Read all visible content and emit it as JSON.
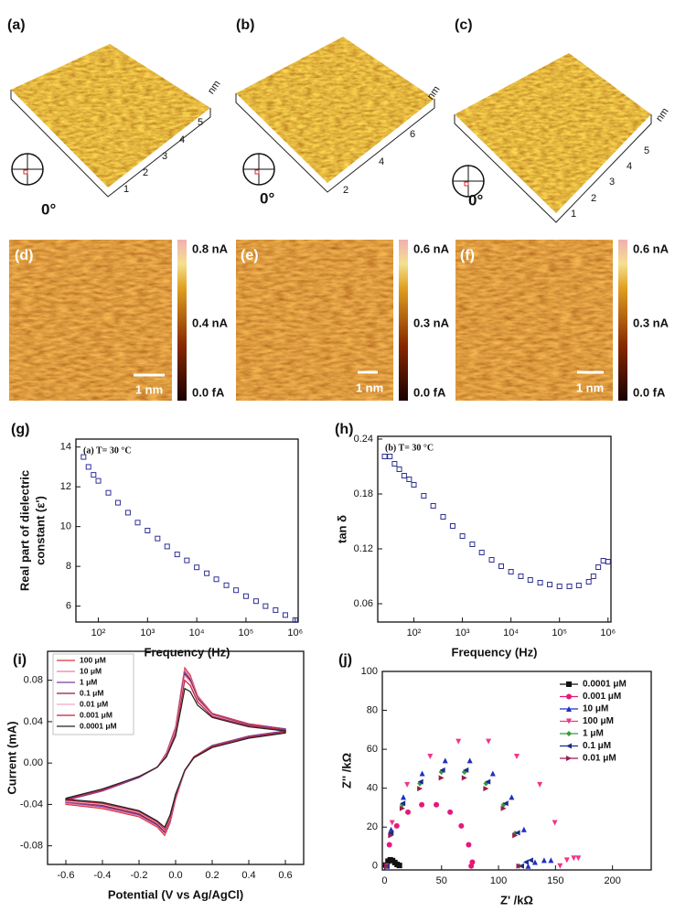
{
  "afm": [
    {
      "label": "(a)",
      "angle": "0°",
      "unit": "nm",
      "ticks": [
        "1",
        "2",
        "3",
        "4",
        "5"
      ]
    },
    {
      "label": "(b)",
      "angle": "0°",
      "unit": "nm",
      "ticks": [
        "2",
        "4",
        "6"
      ]
    },
    {
      "label": "(c)",
      "angle": "0°",
      "unit": "nm",
      "ticks": [
        "1",
        "2",
        "3",
        "4",
        "5"
      ]
    }
  ],
  "current_maps": [
    {
      "label": "(d)",
      "scale": "1 nm",
      "colorbar": [
        "0.8 nA",
        "0.4 nA",
        "0.0 fA"
      ]
    },
    {
      "label": "(e)",
      "scale": "1 nm",
      "colorbar": [
        "0.6 nA",
        "0.3 nA",
        "0.0 fA"
      ]
    },
    {
      "label": "(f)",
      "scale": "1 nm",
      "colorbar": [
        "0.6 nA",
        "0.3 nA",
        "0.0 fA"
      ]
    }
  ],
  "chart_data": [
    {
      "type": "scatter",
      "label": "(g)",
      "annotation": "(a) T= 30 °C",
      "xlabel": "Frequency (Hz)",
      "ylabel": [
        "Real part of dielectric",
        "constant (ε')"
      ],
      "xscale": "log",
      "xlim": [
        35,
        1150000
      ],
      "ylim": [
        5.2,
        14.4
      ],
      "xticks": [
        {
          "value": 100,
          "label": "10²"
        },
        {
          "value": 1000,
          "label": "10³"
        },
        {
          "value": 10000,
          "label": "10⁴"
        },
        {
          "value": 100000,
          "label": "10⁵"
        },
        {
          "value": 1000000,
          "label": "10⁶"
        }
      ],
      "yticks": [
        6,
        8,
        10,
        12,
        14
      ],
      "color": "#2e3192",
      "marker": "square-open",
      "x": [
        50,
        63,
        80,
        100,
        160,
        250,
        400,
        630,
        1000,
        1600,
        2500,
        4000,
        6300,
        10000,
        16000,
        25000,
        40000,
        63000,
        100000,
        160000,
        250000,
        400000,
        630000,
        1000000
      ],
      "values": [
        13.5,
        13.0,
        12.6,
        12.3,
        11.7,
        11.2,
        10.7,
        10.2,
        9.8,
        9.4,
        9.0,
        8.6,
        8.3,
        7.95,
        7.65,
        7.35,
        7.05,
        6.8,
        6.5,
        6.25,
        6.0,
        5.8,
        5.55,
        5.3
      ]
    },
    {
      "type": "scatter",
      "label": "(h)",
      "annotation": "(b) T= 30 °C",
      "xlabel": "Frequency (Hz)",
      "ylabel": [
        "tan δ"
      ],
      "xscale": "log",
      "xlim": [
        18,
        1150000
      ],
      "ylim": [
        0.04,
        0.243
      ],
      "xticks": [
        {
          "value": 100,
          "label": "10²"
        },
        {
          "value": 1000,
          "label": "10³"
        },
        {
          "value": 10000,
          "label": "10⁴"
        },
        {
          "value": 100000,
          "label": "10⁵"
        },
        {
          "value": 1000000,
          "label": "10⁶"
        }
      ],
      "yticks": [
        0.06,
        0.12,
        0.18,
        0.24
      ],
      "color": "#2e3192",
      "marker": "square-open",
      "x": [
        25,
        32,
        40,
        50,
        63,
        80,
        100,
        160,
        250,
        400,
        630,
        1000,
        1600,
        2500,
        4000,
        6300,
        10000,
        16000,
        25000,
        40000,
        63000,
        100000,
        160000,
        250000,
        400000,
        500000,
        630000,
        800000,
        1000000
      ],
      "values": [
        0.221,
        0.221,
        0.213,
        0.207,
        0.2,
        0.196,
        0.19,
        0.178,
        0.167,
        0.155,
        0.145,
        0.134,
        0.125,
        0.116,
        0.108,
        0.101,
        0.095,
        0.09,
        0.086,
        0.083,
        0.081,
        0.079,
        0.079,
        0.08,
        0.084,
        0.09,
        0.1,
        0.107,
        0.106
      ]
    },
    {
      "type": "line",
      "label": "(i)",
      "legend": "upper left",
      "xlabel": "Potential (V vs Ag/AgCl)",
      "ylabel": [
        "Current (mA)"
      ],
      "xlim": [
        -0.7,
        0.7
      ],
      "ylim": [
        -0.098,
        0.108
      ],
      "xticks": [
        -0.6,
        -0.4,
        -0.2,
        {
          "value": 0,
          "label": "0.0"
        },
        0.2,
        0.4,
        0.6
      ],
      "yticks": [
        -0.08,
        -0.04,
        {
          "value": 0,
          "label": "0.00"
        },
        0.04,
        0.08
      ],
      "x": [
        -0.6,
        -0.4,
        -0.2,
        -0.1,
        -0.05,
        0,
        0.03,
        0.05,
        0.08,
        0.12,
        0.2,
        0.4,
        0.6,
        0.6,
        0.4,
        0.2,
        0.1,
        0.05,
        0,
        -0.03,
        -0.06,
        -0.1,
        -0.2,
        -0.4,
        -0.6,
        -0.6
      ],
      "series": [
        {
          "name": "100 μM",
          "color": "#e0303a",
          "values": [
            -0.036,
            -0.027,
            -0.014,
            -0.004,
            0.01,
            0.035,
            0.07,
            0.092,
            0.085,
            0.065,
            0.048,
            0.038,
            0.033,
            0.031,
            0.026,
            0.017,
            0.006,
            -0.008,
            -0.035,
            -0.058,
            -0.07,
            -0.062,
            -0.052,
            -0.044,
            -0.04,
            -0.036
          ]
        },
        {
          "name": "10 μM",
          "color": "#e87fa6",
          "values": [
            -0.036,
            -0.027,
            -0.014,
            -0.004,
            0.009,
            0.034,
            0.068,
            0.09,
            0.083,
            0.064,
            0.047,
            0.037,
            0.033,
            0.031,
            0.026,
            0.017,
            0.006,
            -0.008,
            -0.034,
            -0.057,
            -0.068,
            -0.061,
            -0.051,
            -0.043,
            -0.039,
            -0.036
          ]
        },
        {
          "name": "1 μM",
          "color": "#7b3f9e",
          "values": [
            -0.036,
            -0.027,
            -0.014,
            -0.004,
            0.009,
            0.033,
            0.066,
            0.088,
            0.081,
            0.063,
            0.047,
            0.037,
            0.033,
            0.031,
            0.026,
            0.017,
            0.006,
            -0.008,
            -0.034,
            -0.056,
            -0.067,
            -0.06,
            -0.05,
            -0.042,
            -0.038,
            -0.036
          ]
        },
        {
          "name": "0.1 μM",
          "color": "#8b1d3a",
          "values": [
            -0.035,
            -0.026,
            -0.013,
            -0.004,
            0.008,
            0.032,
            0.064,
            0.086,
            0.08,
            0.062,
            0.046,
            0.036,
            0.032,
            0.03,
            0.025,
            0.016,
            0.006,
            -0.008,
            -0.033,
            -0.055,
            -0.066,
            -0.059,
            -0.049,
            -0.041,
            -0.037,
            -0.035
          ]
        },
        {
          "name": "0.01 μM",
          "color": "#f4a6c0",
          "values": [
            -0.035,
            -0.026,
            -0.013,
            -0.004,
            0.008,
            0.031,
            0.062,
            0.084,
            0.078,
            0.061,
            0.046,
            0.036,
            0.032,
            0.03,
            0.025,
            0.016,
            0.006,
            -0.008,
            -0.033,
            -0.054,
            -0.065,
            -0.058,
            -0.048,
            -0.04,
            -0.037,
            -0.035
          ]
        },
        {
          "name": "0.001 μM",
          "color": "#c0203a",
          "values": [
            -0.035,
            -0.026,
            -0.013,
            -0.004,
            0.007,
            0.029,
            0.059,
            0.08,
            0.075,
            0.059,
            0.045,
            0.036,
            0.032,
            0.03,
            0.025,
            0.016,
            0.006,
            -0.007,
            -0.032,
            -0.053,
            -0.064,
            -0.057,
            -0.047,
            -0.039,
            -0.036,
            -0.035
          ]
        },
        {
          "name": "0.0001 μM",
          "color": "#222222",
          "values": [
            -0.034,
            -0.025,
            -0.013,
            -0.004,
            0.006,
            0.026,
            0.053,
            0.072,
            0.069,
            0.056,
            0.044,
            0.035,
            0.031,
            0.029,
            0.024,
            0.015,
            0.005,
            -0.007,
            -0.03,
            -0.05,
            -0.062,
            -0.056,
            -0.046,
            -0.038,
            -0.035,
            -0.034
          ]
        }
      ]
    },
    {
      "type": "scatter",
      "label": "(j)",
      "legend": "upper right",
      "xlabel": "Z' /kΩ",
      "ylabel": [
        "Z'' /kΩ"
      ],
      "xlim": [
        -2,
        234
      ],
      "ylim": [
        -2,
        100
      ],
      "xticks": [
        0,
        50,
        100,
        150,
        200
      ],
      "yticks": [
        0,
        20,
        40,
        60,
        80,
        100
      ],
      "series": [
        {
          "name": "0.0001 μM",
          "color": "#111111",
          "marker": "square",
          "x": [
            1,
            3,
            5,
            7,
            9,
            11,
            13
          ],
          "values": [
            0.5,
            2.5,
            3.2,
            2.8,
            1.8,
            0.8,
            0.3
          ]
        },
        {
          "name": "0.001 μM",
          "color": "#e6187a",
          "marker": "circle",
          "x": [
            2,
            4.2,
            10.7,
            20.5,
            32.6,
            45.4,
            57.5,
            67.3,
            73.8,
            76,
            77
          ],
          "values": [
            0,
            10.9,
            20.6,
            27.7,
            31.5,
            31.5,
            27.7,
            20.6,
            10.9,
            0,
            2
          ]
        },
        {
          "name": "10 μM",
          "color": "#1f2fbf",
          "marker": "triangle-up",
          "x": [
            2,
            5.7,
            16.5,
            33,
            53.2,
            74.8,
            95,
            111.5,
            122.3,
            126,
            132,
            140,
            146
          ],
          "values": [
            0,
            18.8,
            35.4,
            47.6,
            54.2,
            54.2,
            47.6,
            35.4,
            18.8,
            0,
            2,
            3,
            3
          ]
        },
        {
          "name": "100 μM",
          "color": "#f0358a",
          "marker": "triangle-down",
          "x": [
            2,
            6.6,
            19.8,
            40,
            64.8,
            91.2,
            116,
            136.2,
            149.4,
            154,
            160,
            166,
            170
          ],
          "values": [
            0,
            22.2,
            41.8,
            56.3,
            64,
            64,
            56.3,
            41.8,
            22.2,
            0,
            3,
            4,
            4
          ]
        },
        {
          "name": "1 μM",
          "color": "#3a9a3a",
          "marker": "diamond",
          "x": [
            2,
            5.5,
            15.6,
            31,
            49.9,
            70.1,
            89,
            104.4,
            114.5,
            118
          ],
          "values": [
            0,
            16.8,
            31.5,
            42.4,
            48.3,
            48.3,
            42.4,
            31.5,
            16.8,
            0
          ]
        },
        {
          "name": "0.1 μM",
          "color": "#1b2a8c",
          "marker": "triangle-left",
          "x": [
            2,
            5.5,
            15.8,
            31.5,
            50.7,
            71.3,
            90.5,
            106.2,
            116.5,
            120,
            124,
            128
          ],
          "values": [
            0,
            17.1,
            32.2,
            43.3,
            49.3,
            49.3,
            43.3,
            32.2,
            17.1,
            0,
            2,
            3
          ]
        },
        {
          "name": "0.01 μM",
          "color": "#9b1c50",
          "marker": "triangle-right",
          "x": [
            2,
            5.5,
            15.6,
            31,
            49.9,
            70.1,
            89,
            104.4,
            114.5,
            118
          ],
          "values": [
            0,
            15.7,
            29.6,
            39.8,
            45.3,
            45.3,
            39.8,
            29.6,
            15.7,
            0
          ]
        }
      ]
    }
  ]
}
